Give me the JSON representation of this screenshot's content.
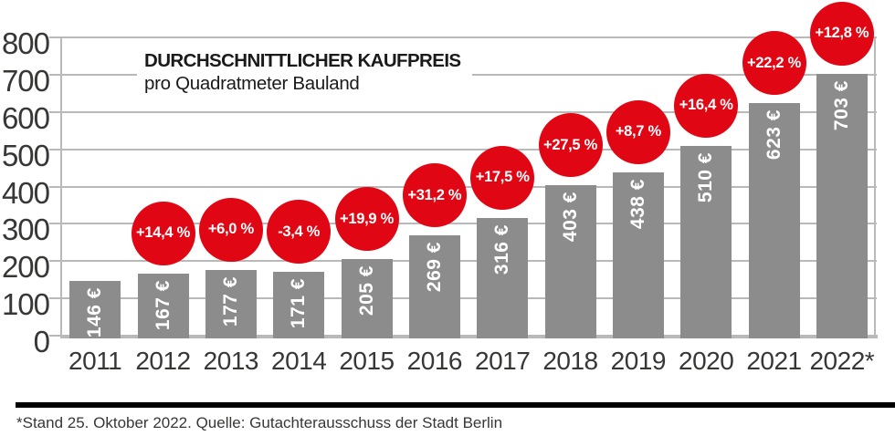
{
  "header": {
    "title_line1": "DURCHSCHNITTLICHER KAUFPREIS",
    "title_line2": "pro Quadratmeter Bauland"
  },
  "footnote": "*Stand 25. Oktober 2022. Quelle: Gutachterausschuss der Stadt Berlin",
  "colors": {
    "bar": "#8c8c8c",
    "bubble": "#e10613",
    "grid": "#b9b9ba",
    "axis_text": "#373736",
    "bar_value_text": "#ffffff",
    "bubble_text": "#ffffff",
    "footer_rule": "#000000"
  },
  "chart_data": {
    "type": "bar",
    "title": "DURCHSCHNITTLICHER KAUFPREIS",
    "subtitle": "pro Quadratmeter Bauland",
    "categories": [
      "2011",
      "2012",
      "2013",
      "2014",
      "2015",
      "2016",
      "2017",
      "2018",
      "2019",
      "2020",
      "2021",
      "2022*"
    ],
    "values": [
      146,
      167,
      177,
      171,
      205,
      269,
      316,
      403,
      438,
      510,
      623,
      703
    ],
    "bar_value_labels": [
      "146 €",
      "167 €",
      "177 €",
      "171 €",
      "205 €",
      "269 €",
      "316 €",
      "403 €",
      "438 €",
      "510 €",
      "623 €",
      "703 €"
    ],
    "pct_change_labels": [
      null,
      "+14,4 %",
      "+6,0 %",
      "-3,4 %",
      "+19,9 %",
      "+31,2 %",
      "+17,5 %",
      "+27,5 %",
      "+8,7 %",
      "+16,4 %",
      "+22,2 %",
      "+12,8 %"
    ],
    "unit": "EUR per m2",
    "xlabel": "",
    "ylabel": "",
    "ylim": [
      0,
      800
    ],
    "yticks": [
      0,
      100,
      200,
      300,
      400,
      500,
      600,
      700,
      800
    ],
    "grid": true,
    "legend_position": "none"
  }
}
